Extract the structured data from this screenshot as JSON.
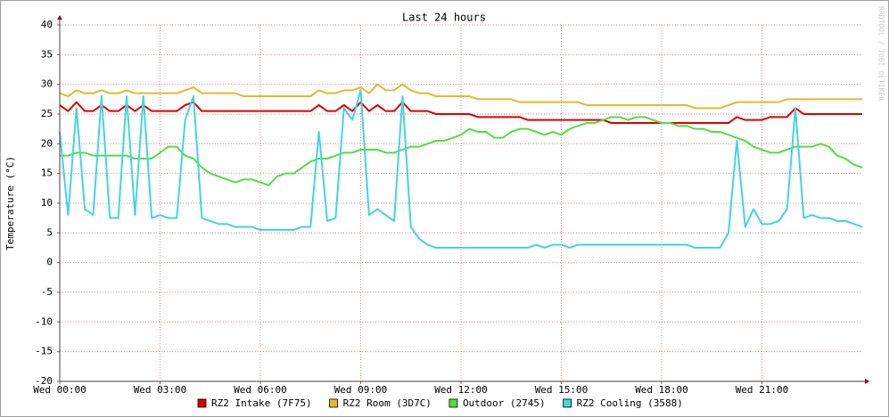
{
  "chart_data": {
    "type": "line",
    "title": "Last 24 hours",
    "y_label": "Temperature (°C)",
    "watermark": "RRDTOOL / TOBI OETIKER",
    "grid": true,
    "legend": "bottom",
    "x": [
      0,
      0.25,
      0.5,
      0.75,
      1,
      1.25,
      1.5,
      1.75,
      2,
      2.25,
      2.5,
      2.75,
      3,
      3.25,
      3.5,
      3.75,
      4,
      4.25,
      4.5,
      4.75,
      5,
      5.25,
      5.5,
      5.75,
      6,
      6.25,
      6.5,
      6.75,
      7,
      7.25,
      7.5,
      7.75,
      8,
      8.25,
      8.5,
      8.75,
      9,
      9.25,
      9.5,
      9.75,
      10,
      10.25,
      10.5,
      10.75,
      11,
      11.25,
      11.5,
      11.75,
      12,
      12.25,
      12.5,
      12.75,
      13,
      13.25,
      13.5,
      13.75,
      14,
      14.25,
      14.5,
      14.75,
      15,
      15.25,
      15.5,
      15.75,
      16,
      16.25,
      16.5,
      16.75,
      17,
      17.25,
      17.5,
      17.75,
      18,
      18.25,
      18.5,
      18.75,
      19,
      19.25,
      19.5,
      19.75,
      20,
      20.25,
      20.5,
      20.75,
      21,
      21.25,
      21.5,
      21.75,
      22,
      22.25,
      22.5,
      22.75,
      23,
      23.25,
      23.5,
      23.75,
      24
    ],
    "xlim": [
      0,
      24
    ],
    "xticks": [
      {
        "value": 0,
        "label": "Wed 00:00"
      },
      {
        "value": 3,
        "label": "Wed 03:00"
      },
      {
        "value": 6,
        "label": "Wed 06:00"
      },
      {
        "value": 9,
        "label": "Wed 09:00"
      },
      {
        "value": 12,
        "label": "Wed 12:00"
      },
      {
        "value": 15,
        "label": "Wed 15:00"
      },
      {
        "value": 18,
        "label": "Wed 18:00"
      },
      {
        "value": 21,
        "label": "Wed 21:00"
      }
    ],
    "ylim": [
      -20,
      40
    ],
    "yticks": [
      -20,
      -15,
      -10,
      -5,
      0,
      5,
      10,
      15,
      20,
      25,
      30,
      35,
      40
    ],
    "series": [
      {
        "name": "RZ2 Intake (7F75)",
        "color": "#dd0000",
        "values": [
          26.5,
          25.5,
          27,
          25.5,
          25.5,
          26.5,
          25.5,
          25.5,
          26.5,
          25.5,
          26.5,
          25.5,
          25.5,
          25.5,
          25.5,
          26.5,
          27,
          25.5,
          25.5,
          25.5,
          25.5,
          25.5,
          25.5,
          25.5,
          25.5,
          25.5,
          25.5,
          25.5,
          25.5,
          25.5,
          25.5,
          26.5,
          25.5,
          25.5,
          26.5,
          25.5,
          27,
          25.5,
          26.5,
          25.5,
          25.5,
          27,
          25.5,
          25.5,
          25.5,
          25,
          25,
          25,
          25,
          25,
          24.5,
          24.5,
          24.5,
          24.5,
          24.5,
          24.5,
          24,
          24,
          24,
          24,
          24,
          24,
          24,
          24,
          24,
          24,
          23.5,
          23.5,
          23.5,
          23.5,
          23.5,
          23.5,
          23.5,
          23.5,
          23.5,
          23.5,
          23.5,
          23.5,
          23.5,
          23.5,
          23.5,
          24.5,
          24,
          24,
          24,
          24.5,
          24.5,
          24.5,
          26,
          25,
          25,
          25,
          25,
          25,
          25,
          25,
          25
        ]
      },
      {
        "name": "RZ2 Room (3D7C)",
        "color": "#e6b82e",
        "values": [
          28.5,
          28,
          29,
          28.5,
          28.5,
          29,
          28.5,
          28.5,
          29,
          28.5,
          28.5,
          28.5,
          28.5,
          28.5,
          28.5,
          29,
          29.5,
          28.5,
          28.5,
          28.5,
          28.5,
          28.5,
          28,
          28,
          28,
          28,
          28,
          28,
          28,
          28,
          28,
          29,
          28.5,
          28.5,
          29,
          29,
          29.5,
          28.5,
          30,
          29,
          29,
          30,
          29,
          28.5,
          28.5,
          28,
          28,
          28,
          28,
          28,
          27.5,
          27.5,
          27.5,
          27.5,
          27.5,
          27,
          27,
          27,
          27,
          27,
          27,
          27,
          27,
          26.5,
          26.5,
          26.5,
          26.5,
          26.5,
          26.5,
          26.5,
          26.5,
          26.5,
          26.5,
          26.5,
          26.5,
          26.5,
          26,
          26,
          26,
          26,
          26.5,
          27,
          27,
          27,
          27,
          27,
          27,
          27.5,
          27.5,
          27.5,
          27.5,
          27.5,
          27.5,
          27.5,
          27.5,
          27.5,
          27.5
        ]
      },
      {
        "name": "Outdoor (2745)",
        "color": "#55dd44",
        "values": [
          18,
          18,
          18.5,
          18.5,
          18,
          18,
          18,
          18,
          18,
          17.5,
          17.5,
          17.5,
          18.5,
          19.5,
          19.5,
          18,
          17.5,
          16,
          15,
          14.5,
          14,
          13.5,
          14,
          14,
          13.5,
          13,
          14.5,
          15,
          15,
          16,
          17,
          17.5,
          17.5,
          18,
          18.5,
          18.5,
          19,
          19,
          19,
          18.5,
          18.5,
          19,
          19.5,
          19.5,
          20,
          20.5,
          20.5,
          21,
          21.5,
          22.5,
          22,
          22,
          21,
          21,
          22,
          22.5,
          22.5,
          22,
          21.5,
          22,
          21.5,
          22.5,
          23,
          23.5,
          23.5,
          24,
          24.5,
          24.5,
          24,
          24.5,
          24.5,
          24,
          23.5,
          23.5,
          23,
          23,
          22.5,
          22.5,
          22,
          22,
          21.5,
          21,
          20.5,
          19.5,
          19,
          18.5,
          18.5,
          19,
          19.5,
          19.5,
          19.5,
          20,
          19.5,
          18,
          17.5,
          16.5,
          16
        ]
      },
      {
        "name": "RZ2 Cooling (3588)",
        "color": "#44d4e0",
        "values": [
          22,
          8,
          26,
          9,
          8,
          28,
          7.5,
          7.5,
          28,
          8,
          28,
          7.5,
          8,
          7.5,
          7.5,
          24,
          28,
          7.5,
          7,
          6.5,
          6.5,
          6,
          6,
          6,
          5.5,
          5.5,
          5.5,
          5.5,
          5.5,
          6,
          6,
          22,
          7,
          7.5,
          26,
          24,
          29,
          8,
          9,
          8,
          7,
          28,
          6,
          4,
          3,
          2.5,
          2.5,
          2.5,
          2.5,
          2.5,
          2.5,
          2.5,
          2.5,
          2.5,
          2.5,
          2.5,
          2.5,
          3,
          2.5,
          3,
          3,
          2.5,
          3,
          3,
          3,
          3,
          3,
          3,
          3,
          3,
          3,
          3,
          3,
          3,
          3,
          3,
          2.5,
          2.5,
          2.5,
          2.5,
          5,
          20.5,
          6,
          9,
          6.5,
          6.5,
          7,
          9,
          26,
          7.5,
          8,
          7.5,
          7.5,
          7,
          7,
          6.5,
          6
        ]
      }
    ]
  }
}
